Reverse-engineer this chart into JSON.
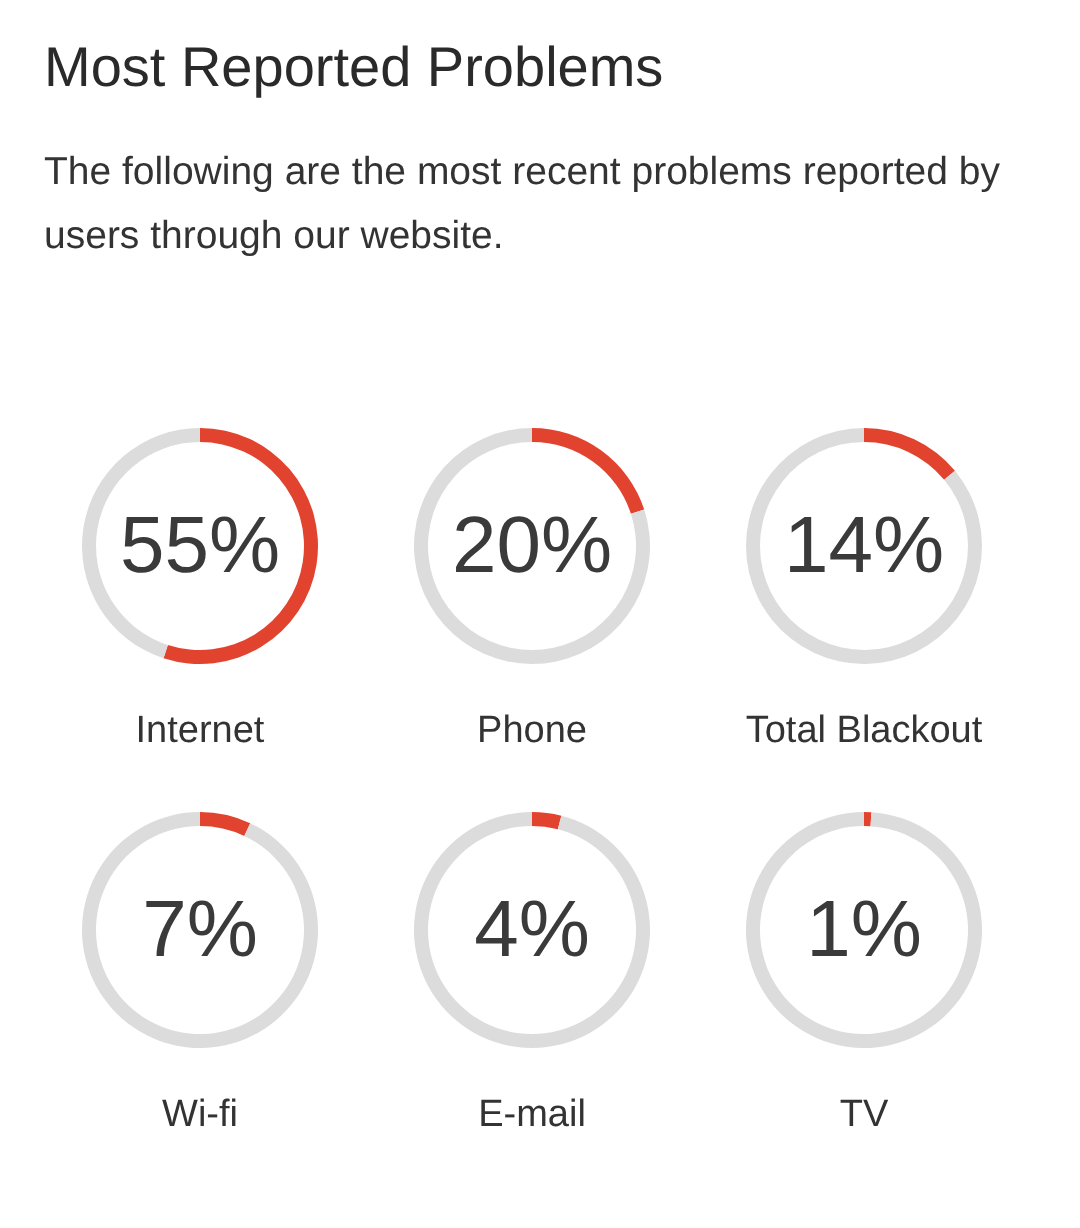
{
  "chart_data": [
    {
      "type": "other",
      "title": "Most Reported Problems",
      "subtitle": "The following are the most recent problems reported by users through our website."
    },
    {
      "type": "donut",
      "title": "Internet",
      "categories": [
        null,
        null
      ],
      "values": [
        55,
        45
      ],
      "colors": [
        "#e2432f",
        "#dcdcdc"
      ],
      "annotations": [
        "55%"
      ]
    },
    {
      "type": "donut",
      "title": "Phone",
      "categories": [
        null,
        null
      ],
      "values": [
        20,
        80
      ],
      "colors": [
        "#e2432f",
        "#dcdcdc"
      ],
      "annotations": [
        "20%"
      ]
    },
    {
      "type": "donut",
      "title": "Total Blackout",
      "categories": [
        null,
        null
      ],
      "values": [
        14,
        86
      ],
      "colors": [
        "#e2432f",
        "#dcdcdc"
      ],
      "annotations": [
        "14%"
      ]
    },
    {
      "type": "donut",
      "title": "Wi-fi",
      "categories": [
        null,
        null
      ],
      "values": [
        7,
        93
      ],
      "colors": [
        "#e2432f",
        "#dcdcdc"
      ],
      "annotations": [
        "7%"
      ]
    },
    {
      "type": "donut",
      "title": "E-mail",
      "categories": [
        null,
        null
      ],
      "values": [
        4,
        96
      ],
      "colors": [
        "#e2432f",
        "#dcdcdc"
      ],
      "annotations": [
        "4%"
      ]
    },
    {
      "type": "donut",
      "title": "TV",
      "categories": [
        null,
        null
      ],
      "values": [
        1,
        99
      ],
      "colors": [
        "#e2432f",
        "#dcdcdc"
      ],
      "annotations": [
        "1%"
      ]
    }
  ]
}
